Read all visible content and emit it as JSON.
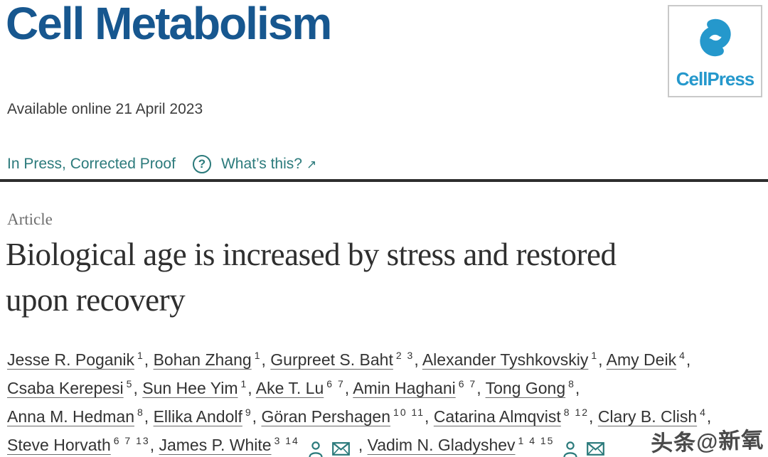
{
  "colors": {
    "journal_blue": "#17578f",
    "cellpress_blue": "#2598cc",
    "teal": "#2b7a7b",
    "rule_dark": "#2e2e2e"
  },
  "header": {
    "journal_title": "Cell Metabolism",
    "publisher_logo_text": "CellPress",
    "available_online": "Available online 21 April 2023",
    "status": "In Press, Corrected Proof",
    "question_icon": "?",
    "whats_this": "What’s this?",
    "whats_this_arrow": "↗"
  },
  "article": {
    "type_label": "Article",
    "title": "Biological age is increased by stress and restored upon recovery"
  },
  "authors": [
    {
      "name": "Jesse R. Poganik",
      "sup": "1",
      "icons": false
    },
    {
      "name": "Bohan Zhang",
      "sup": "1",
      "icons": false
    },
    {
      "name": "Gurpreet S. Baht",
      "sup": "2 3",
      "icons": false
    },
    {
      "name": "Alexander Tyshkovskiy",
      "sup": "1",
      "icons": false
    },
    {
      "name": "Amy Deik",
      "sup": "4",
      "icons": false
    },
    {
      "name": "Csaba Kerepesi",
      "sup": "5",
      "icons": false
    },
    {
      "name": "Sun Hee Yim",
      "sup": "1",
      "icons": false
    },
    {
      "name": "Ake T. Lu",
      "sup": "6 7",
      "icons": false
    },
    {
      "name": "Amin Haghani",
      "sup": "6 7",
      "icons": false
    },
    {
      "name": "Tong Gong",
      "sup": "8",
      "icons": false
    },
    {
      "name": "Anna M. Hedman",
      "sup": "8",
      "icons": false
    },
    {
      "name": "Ellika Andolf",
      "sup": "9",
      "icons": false
    },
    {
      "name": "Göran Pershagen",
      "sup": "10 11",
      "icons": false
    },
    {
      "name": "Catarina Almqvist",
      "sup": "8 12",
      "icons": false
    },
    {
      "name": "Clary B. Clish",
      "sup": "4",
      "icons": false
    },
    {
      "name": "Steve Horvath",
      "sup": "6 7 13",
      "icons": false
    },
    {
      "name": "James P. White",
      "sup": "3 14",
      "icons": true
    },
    {
      "name": "Vadim N. Gladyshev",
      "sup": "1 4 15",
      "icons": true
    }
  ],
  "icon_names": {
    "author_profile": "person-icon",
    "author_email": "envelope-icon",
    "help": "question-icon"
  },
  "watermark": "头条@新氧"
}
